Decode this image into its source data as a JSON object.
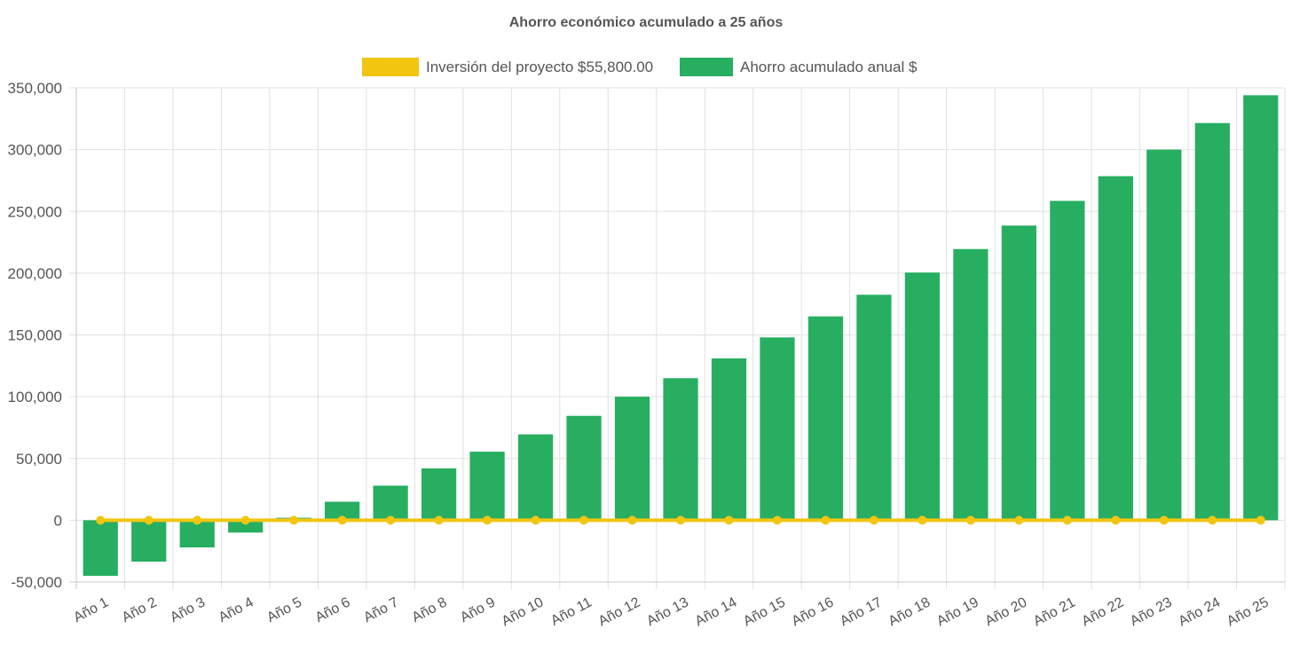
{
  "chart_data": {
    "type": "bar",
    "title": "Ahorro económico acumulado a 25 años",
    "categories": [
      "Año 1",
      "Año 2",
      "Año 3",
      "Año 4",
      "Año 5",
      "Año 6",
      "Año 7",
      "Año 8",
      "Año 9",
      "Año 10",
      "Año 11",
      "Año 12",
      "Año 13",
      "Año 14",
      "Año 15",
      "Año 16",
      "Año 17",
      "Año 18",
      "Año 19",
      "Año 20",
      "Año 21",
      "Año 22",
      "Año 23",
      "Año 24",
      "Año 25"
    ],
    "series": [
      {
        "name": "Inversión del proyecto $55,800.00",
        "type": "line",
        "color": "#f2c511",
        "values": [
          0,
          0,
          0,
          0,
          0,
          0,
          0,
          0,
          0,
          0,
          0,
          0,
          0,
          0,
          0,
          0,
          0,
          0,
          0,
          0,
          0,
          0,
          0,
          0,
          0
        ]
      },
      {
        "name": "Ahorro acumulado anual $",
        "type": "bar",
        "color": "#27ae60",
        "values": [
          -45000,
          -33500,
          -22000,
          -10000,
          2000,
          15000,
          28000,
          42000,
          55500,
          69500,
          84500,
          100000,
          115000,
          131000,
          148000,
          165000,
          182500,
          200500,
          219500,
          238500,
          258500,
          278500,
          300000,
          321500,
          344000
        ]
      }
    ],
    "ylim": [
      -50000,
      350000
    ],
    "yticks": [
      -50000,
      0,
      50000,
      100000,
      150000,
      200000,
      250000,
      300000,
      350000
    ],
    "ytick_labels": [
      "-50,000",
      "0",
      "50,000",
      "100,000",
      "150,000",
      "200,000",
      "250,000",
      "300,000",
      "350,000"
    ],
    "legend_position": "top-center",
    "grid": true
  }
}
